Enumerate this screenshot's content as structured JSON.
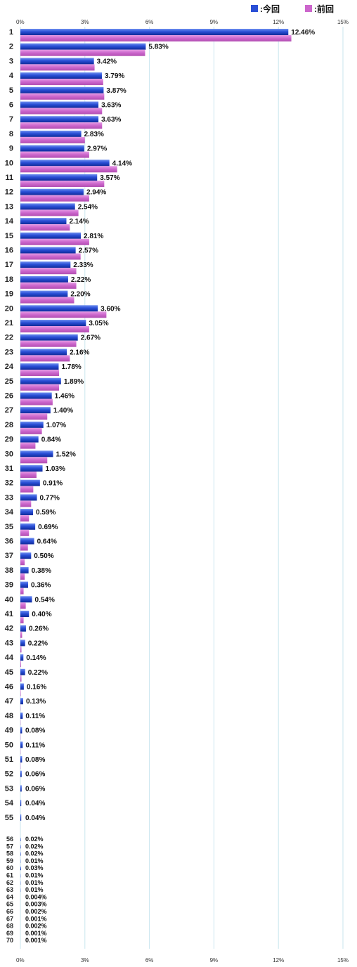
{
  "legend": {
    "current_label": ":今回",
    "previous_label": ":前回"
  },
  "colors": {
    "current": "#2a4fd6",
    "previous": "#cc66cc",
    "grid": "#c9e6ee"
  },
  "chart_data": {
    "type": "bar",
    "orientation": "horizontal",
    "xlim": [
      0,
      15
    ],
    "x_ticks": [
      "0%",
      "3%",
      "6%",
      "9%",
      "12%",
      "15%"
    ],
    "categories": [
      "1",
      "2",
      "3",
      "4",
      "5",
      "6",
      "7",
      "8",
      "9",
      "10",
      "11",
      "12",
      "13",
      "14",
      "15",
      "16",
      "17",
      "18",
      "19",
      "20",
      "21",
      "22",
      "23",
      "24",
      "25",
      "26",
      "27",
      "28",
      "29",
      "30",
      "31",
      "32",
      "33",
      "34",
      "35",
      "36",
      "37",
      "38",
      "39",
      "40",
      "41",
      "42",
      "43",
      "44",
      "45",
      "46",
      "47",
      "48",
      "49",
      "50",
      "51",
      "52",
      "53",
      "54",
      "55",
      "56",
      "57",
      "58",
      "59",
      "60",
      "61",
      "62",
      "63",
      "64",
      "65",
      "66",
      "67",
      "68",
      "69",
      "70"
    ],
    "series": [
      {
        "name": "今回",
        "values": [
          12.46,
          5.83,
          3.42,
          3.79,
          3.87,
          3.63,
          3.63,
          2.83,
          2.97,
          4.14,
          3.57,
          2.94,
          2.54,
          2.14,
          2.81,
          2.57,
          2.33,
          2.22,
          2.2,
          3.6,
          3.05,
          2.67,
          2.16,
          1.78,
          1.89,
          1.46,
          1.4,
          1.07,
          0.84,
          1.52,
          1.03,
          0.91,
          0.77,
          0.59,
          0.69,
          0.64,
          0.5,
          0.38,
          0.36,
          0.54,
          0.4,
          0.26,
          0.22,
          0.14,
          0.22,
          0.16,
          0.13,
          0.11,
          0.08,
          0.11,
          0.08,
          0.06,
          0.06,
          0.04,
          0.04,
          0.02,
          0.02,
          0.02,
          0.01,
          0.03,
          0.01,
          0.01,
          0.01,
          0.004,
          0.003,
          0.002,
          0.001,
          0.002,
          0.001,
          0.001
        ],
        "labels": [
          "12.46%",
          "5.83%",
          "3.42%",
          "3.79%",
          "3.87%",
          "3.63%",
          "3.63%",
          "2.83%",
          "2.97%",
          "4.14%",
          "3.57%",
          "2.94%",
          "2.54%",
          "2.14%",
          "2.81%",
          "2.57%",
          "2.33%",
          "2.22%",
          "2.20%",
          "3.60%",
          "3.05%",
          "2.67%",
          "2.16%",
          "1.78%",
          "1.89%",
          "1.46%",
          "1.40%",
          "1.07%",
          "0.84%",
          "1.52%",
          "1.03%",
          "0.91%",
          "0.77%",
          "0.59%",
          "0.69%",
          "0.64%",
          "0.50%",
          "0.38%",
          "0.36%",
          "0.54%",
          "0.40%",
          "0.26%",
          "0.22%",
          "0.14%",
          "0.22%",
          "0.16%",
          "0.13%",
          "0.11%",
          "0.08%",
          "0.11%",
          "0.08%",
          "0.06%",
          "0.06%",
          "0.04%",
          "0.04%",
          "0.02%",
          "0.02%",
          "0.02%",
          "0.01%",
          "0.03%",
          "0.01%",
          "0.01%",
          "0.01%",
          "0.004%",
          "0.003%",
          "0.002%",
          "0.001%",
          "0.002%",
          "0.001%",
          "0.001%"
        ]
      },
      {
        "name": "前回",
        "values": [
          12.6,
          5.8,
          3.45,
          3.85,
          3.9,
          3.8,
          3.8,
          3.0,
          3.2,
          4.5,
          3.9,
          3.2,
          2.7,
          2.3,
          3.2,
          2.8,
          2.6,
          2.6,
          2.5,
          4.0,
          3.2,
          2.6,
          2.3,
          1.8,
          1.8,
          1.5,
          1.25,
          1.0,
          0.7,
          1.25,
          0.75,
          0.6,
          0.5,
          0.4,
          0.4,
          0.35,
          0.2,
          0.2,
          0.15,
          0.25,
          0.15,
          0.08,
          0.05,
          0.03,
          0.05,
          0.02,
          0.01,
          0.01,
          0.01,
          0.01,
          0.01,
          0,
          0,
          0,
          0,
          0,
          0,
          0,
          0,
          0,
          0,
          0,
          0,
          0,
          0,
          0,
          0,
          0,
          0,
          0
        ]
      }
    ]
  }
}
